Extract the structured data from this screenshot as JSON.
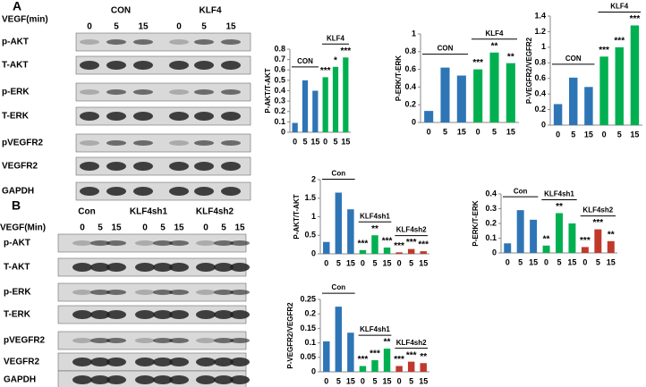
{
  "panels": [
    {
      "letter": "A",
      "time_label": "VEGF(min)",
      "groups": [
        "CON",
        "KLF4"
      ],
      "times": [
        0,
        5,
        15,
        0,
        5,
        15
      ],
      "rows": [
        "p-AKT",
        "T-AKT",
        "p-ERK",
        "T-ERK",
        "pVEGFR2",
        "VEGFR2",
        "GAPDH"
      ]
    },
    {
      "letter": "B",
      "time_label": "VEGF(Min)",
      "groups": [
        "Con",
        "KLF4sh1",
        "KLF4sh2"
      ],
      "times": [
        0,
        5,
        15,
        0,
        5,
        15,
        0,
        5,
        15
      ],
      "rows": [
        "p-AKT",
        "T-AKT",
        "p-ERK",
        "T-ERK",
        "pVEGFR2",
        "VEGFR2",
        "GAPDH"
      ]
    }
  ],
  "chart_data": [
    {
      "type": "bar",
      "y_label": "P-AKT/T-AKT",
      "groups": [
        "CON",
        "KLF4"
      ],
      "categories": [
        0,
        5,
        15,
        0,
        5,
        15
      ],
      "values": [
        0.09,
        0.5,
        0.4,
        0.53,
        0.63,
        0.72
      ],
      "colors": [
        "#2e75b6",
        "#2e75b6",
        "#2e75b6",
        "#00b050",
        "#00b050",
        "#00b050"
      ],
      "annotations": [
        null,
        null,
        null,
        "***",
        "*",
        "***"
      ],
      "ylim": [
        0,
        0.8
      ],
      "yticks": [
        0,
        0.1,
        0.2,
        0.3,
        0.4,
        0.5,
        0.6,
        0.7,
        0.8
      ]
    },
    {
      "type": "bar",
      "y_label": "P-ERK/T-ERK",
      "groups": [
        "CON",
        "KLF4"
      ],
      "categories": [
        0,
        5,
        15,
        0,
        5,
        15
      ],
      "values": [
        0.13,
        0.62,
        0.53,
        0.6,
        0.79,
        0.67
      ],
      "colors": [
        "#2e75b6",
        "#2e75b6",
        "#2e75b6",
        "#00b050",
        "#00b050",
        "#00b050"
      ],
      "annotations": [
        null,
        null,
        null,
        "***",
        "**",
        "**"
      ],
      "ylim": [
        0,
        1
      ],
      "yticks": [
        0,
        0.2,
        0.4,
        0.6,
        0.8,
        1
      ]
    },
    {
      "type": "bar",
      "y_label": "P-VEGFR2/VEGFR2",
      "groups": [
        "CON",
        "KLF4"
      ],
      "categories": [
        0,
        5,
        15,
        0,
        5,
        15
      ],
      "values": [
        0.27,
        0.61,
        0.49,
        0.88,
        1.0,
        1.28
      ],
      "colors": [
        "#2e75b6",
        "#2e75b6",
        "#2e75b6",
        "#00b050",
        "#00b050",
        "#00b050"
      ],
      "annotations": [
        null,
        null,
        null,
        "***",
        "***",
        "***"
      ],
      "ylim": [
        0,
        1.4
      ],
      "yticks": [
        0,
        0.2,
        0.4,
        0.6,
        0.8,
        1,
        1.2,
        1.4
      ]
    },
    {
      "type": "bar",
      "y_label": "P-AKT/T-AKT",
      "groups": [
        "Con",
        "KLF4sh1",
        "KLF4sh2"
      ],
      "categories": [
        0,
        5,
        15,
        0,
        5,
        15,
        0,
        5,
        15
      ],
      "values": [
        0.32,
        1.65,
        1.2,
        0.1,
        0.5,
        0.17,
        0.04,
        0.13,
        0.07
      ],
      "colors": [
        "#2e75b6",
        "#2e75b6",
        "#2e75b6",
        "#00b050",
        "#00b050",
        "#00b050",
        "#c0392b",
        "#c0392b",
        "#c0392b"
      ],
      "annotations": [
        null,
        null,
        null,
        "***",
        "**",
        "***",
        "***",
        "***",
        "***"
      ],
      "ylim": [
        0,
        2
      ],
      "yticks": [
        0,
        0.5,
        1,
        1.5,
        2
      ]
    },
    {
      "type": "bar",
      "y_label": "P-ERK/T-ERK",
      "groups": [
        "Con",
        "KLF4sh1",
        "KLF4sh2"
      ],
      "categories": [
        0,
        5,
        15,
        0,
        5,
        15,
        0,
        5,
        15
      ],
      "values": [
        0.065,
        0.29,
        0.225,
        0.05,
        0.27,
        0.2,
        0.04,
        0.16,
        0.08
      ],
      "colors": [
        "#2e75b6",
        "#2e75b6",
        "#2e75b6",
        "#00b050",
        "#00b050",
        "#00b050",
        "#c0392b",
        "#c0392b",
        "#c0392b"
      ],
      "annotations": [
        null,
        null,
        null,
        "**",
        "**",
        null,
        "***",
        "***",
        "**"
      ],
      "ylim": [
        0,
        0.4
      ],
      "yticks": [
        0,
        0.1,
        0.2,
        0.3,
        0.4
      ]
    },
    {
      "type": "bar",
      "y_label": "P-VEGFR2/VEGFR2",
      "groups": [
        "Con",
        "KLF4sh1",
        "KLF4sh2"
      ],
      "categories": [
        0,
        5,
        15,
        0,
        5,
        15,
        0,
        5,
        15
      ],
      "values": [
        0.105,
        0.225,
        0.135,
        0.02,
        0.04,
        0.08,
        0.02,
        0.035,
        0.03
      ],
      "colors": [
        "#2e75b6",
        "#2e75b6",
        "#2e75b6",
        "#00b050",
        "#00b050",
        "#00b050",
        "#c0392b",
        "#c0392b",
        "#c0392b"
      ],
      "annotations": [
        null,
        null,
        null,
        "***",
        "***",
        "**",
        "***",
        "***",
        "**"
      ],
      "ylim": [
        0,
        0.25
      ],
      "yticks": [
        0,
        0.05,
        0.1,
        0.15,
        0.2,
        0.25
      ]
    }
  ]
}
